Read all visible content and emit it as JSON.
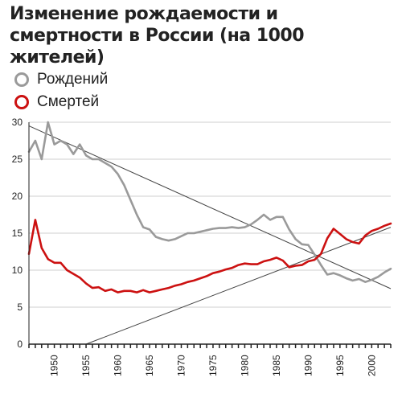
{
  "title": "Изменение рождаемости и смертности в России (на 1000 жителей)",
  "legend": {
    "births": "Рождений",
    "deaths": "Смертей"
  },
  "colors": {
    "births": "#9a9a9a",
    "deaths": "#cc1111",
    "trend": "#444444",
    "axis": "#222222"
  },
  "chart_data": {
    "type": "line",
    "title": "Изменение рождаемости и смертности в России (на 1000 жителей)",
    "xlabel": "",
    "ylabel": "",
    "ylim": [
      0,
      30
    ],
    "xlim": [
      1946,
      2003
    ],
    "yticks": [
      0,
      5,
      10,
      15,
      20,
      25,
      30
    ],
    "xticks": [
      1950,
      1955,
      1960,
      1965,
      1970,
      1975,
      1980,
      1985,
      1990,
      1995,
      2000
    ],
    "grid": true,
    "legend_position": "top-left",
    "series": [
      {
        "name": "Рождений",
        "x": [
          1946,
          1947,
          1948,
          1949,
          1950,
          1951,
          1952,
          1953,
          1954,
          1955,
          1956,
          1957,
          1958,
          1959,
          1960,
          1961,
          1962,
          1963,
          1964,
          1965,
          1966,
          1967,
          1968,
          1969,
          1970,
          1971,
          1972,
          1973,
          1974,
          1975,
          1976,
          1977,
          1978,
          1979,
          1980,
          1981,
          1982,
          1983,
          1984,
          1985,
          1986,
          1987,
          1988,
          1989,
          1990,
          1991,
          1992,
          1993,
          1994,
          1995,
          1996,
          1997,
          1998,
          1999,
          2000,
          2001,
          2002,
          2003
        ],
        "values": [
          26,
          27.5,
          25,
          30,
          27,
          27.5,
          27,
          25.7,
          27,
          25.5,
          25,
          25,
          24.5,
          24,
          23,
          21.5,
          19.5,
          17.5,
          15.8,
          15.5,
          14.5,
          14.2,
          14,
          14.2,
          14.6,
          15,
          15,
          15.2,
          15.4,
          15.6,
          15.7,
          15.7,
          15.8,
          15.7,
          15.8,
          16.2,
          16.8,
          17.5,
          16.8,
          17.2,
          17.2,
          15.5,
          14.2,
          13.5,
          13.4,
          12.1,
          10.7,
          9.4,
          9.6,
          9.3,
          8.9,
          8.6,
          8.8,
          8.4,
          8.7,
          9.1,
          9.7,
          10.2
        ]
      },
      {
        "name": "Смертей",
        "x": [
          1946,
          1947,
          1948,
          1949,
          1950,
          1951,
          1952,
          1953,
          1954,
          1955,
          1956,
          1957,
          1958,
          1959,
          1960,
          1961,
          1962,
          1963,
          1964,
          1965,
          1966,
          1967,
          1968,
          1969,
          1970,
          1971,
          1972,
          1973,
          1974,
          1975,
          1976,
          1977,
          1978,
          1979,
          1980,
          1981,
          1982,
          1983,
          1984,
          1985,
          1986,
          1987,
          1988,
          1989,
          1990,
          1991,
          1992,
          1993,
          1994,
          1995,
          1996,
          1997,
          1998,
          1999,
          2000,
          2001,
          2002,
          2003
        ],
        "values": [
          12.2,
          16.8,
          13,
          11.5,
          11,
          11,
          10,
          9.5,
          9,
          8.2,
          7.6,
          7.7,
          7.2,
          7.4,
          7,
          7.2,
          7.2,
          7,
          7.3,
          7,
          7.2,
          7.4,
          7.6,
          7.9,
          8.1,
          8.4,
          8.6,
          8.9,
          9.2,
          9.6,
          9.8,
          10.1,
          10.3,
          10.7,
          10.9,
          10.8,
          10.8,
          11.2,
          11.4,
          11.7,
          11.3,
          10.4,
          10.6,
          10.7,
          11.2,
          11.4,
          12.2,
          14.3,
          15.6,
          14.9,
          14.2,
          13.8,
          13.6,
          14.7,
          15.3,
          15.6,
          16,
          16.3
        ]
      }
    ],
    "trend_lines": [
      {
        "series": "Рождений",
        "from": [
          1946,
          29.5
        ],
        "to": [
          2003,
          7.5
        ]
      },
      {
        "series": "Смертей",
        "from": [
          1955,
          0
        ],
        "to": [
          2003,
          15.8
        ]
      }
    ]
  }
}
